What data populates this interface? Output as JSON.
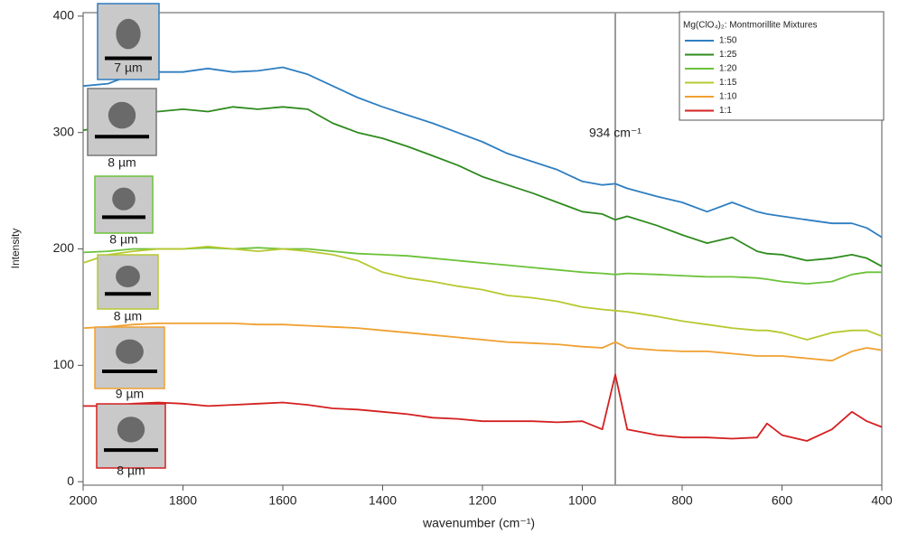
{
  "chart_data": {
    "type": "line",
    "xlabel": "wavenumber (cm⁻¹)",
    "ylabel": "Intensity",
    "x": [
      2000,
      1950,
      1900,
      1850,
      1800,
      1750,
      1700,
      1650,
      1600,
      1550,
      1500,
      1450,
      1400,
      1350,
      1300,
      1250,
      1200,
      1150,
      1100,
      1050,
      1000,
      960,
      934,
      910,
      850,
      800,
      750,
      700,
      650,
      630,
      600,
      550,
      500,
      460,
      430,
      400
    ],
    "xlim": [
      2000,
      400
    ],
    "xticks": [
      2000,
      1800,
      1600,
      1400,
      1200,
      1000,
      800,
      600,
      400
    ],
    "ylim": [
      -3,
      403
    ],
    "yticks": [
      0,
      100,
      200,
      300,
      400
    ],
    "grid": false,
    "legend_title": "Mg(ClO₄)₂: Montmorillite Mixtures",
    "legend_position": "upper right",
    "series": [
      {
        "name": "1:50",
        "color": "#2f7ec1",
        "values": [
          340,
          342,
          350,
          352,
          352,
          355,
          352,
          353,
          356,
          350,
          340,
          330,
          322,
          315,
          308,
          300,
          292,
          282,
          275,
          268,
          258,
          255,
          256,
          252,
          245,
          240,
          232,
          240,
          232,
          230,
          228,
          225,
          222,
          222,
          218,
          210
        ]
      },
      {
        "name": "1:25",
        "color": "#2e8b1e",
        "values": [
          302,
          305,
          318,
          318,
          320,
          318,
          322,
          320,
          322,
          320,
          308,
          300,
          295,
          288,
          280,
          272,
          262,
          255,
          248,
          240,
          232,
          230,
          225,
          228,
          220,
          212,
          205,
          210,
          198,
          196,
          195,
          190,
          192,
          195,
          192,
          185
        ]
      },
      {
        "name": "1:20",
        "color": "#6cc23a",
        "values": [
          197,
          198,
          200,
          200,
          200,
          201,
          200,
          201,
          200,
          200,
          198,
          196,
          195,
          194,
          192,
          190,
          188,
          186,
          184,
          182,
          180,
          179,
          178,
          179,
          178,
          177,
          176,
          176,
          175,
          174,
          172,
          170,
          172,
          178,
          180,
          180
        ]
      },
      {
        "name": "1:15",
        "color": "#b8c830",
        "values": [
          188,
          195,
          198,
          200,
          200,
          202,
          200,
          198,
          200,
          198,
          195,
          190,
          180,
          175,
          172,
          168,
          165,
          160,
          158,
          155,
          150,
          148,
          147,
          146,
          142,
          138,
          135,
          132,
          130,
          130,
          128,
          122,
          128,
          130,
          130,
          125
        ]
      },
      {
        "name": "1:10",
        "color": "#f0a030",
        "values": [
          132,
          133,
          135,
          136,
          136,
          136,
          136,
          135,
          135,
          134,
          133,
          132,
          130,
          128,
          126,
          124,
          122,
          120,
          119,
          118,
          116,
          115,
          120,
          115,
          113,
          112,
          112,
          110,
          108,
          108,
          108,
          106,
          104,
          112,
          115,
          113
        ]
      },
      {
        "name": "1:1",
        "color": "#d42020",
        "values": [
          65,
          65,
          67,
          68,
          67,
          65,
          66,
          67,
          68,
          66,
          63,
          62,
          60,
          58,
          55,
          54,
          52,
          52,
          52,
          51,
          52,
          45,
          92,
          45,
          40,
          38,
          38,
          37,
          38,
          50,
          40,
          35,
          45,
          60,
          52,
          47
        ]
      }
    ],
    "annotation": {
      "text": "934 cm⁻¹",
      "x": 934
    },
    "insets": [
      {
        "label": "7 µm",
        "color": "#2f7ec1"
      },
      {
        "label": "8 µm",
        "color": "#777777"
      },
      {
        "label": "8 µm",
        "color": "#6cc23a"
      },
      {
        "label": "8 µm",
        "color": "#b8c830"
      },
      {
        "label": "9 µm",
        "color": "#f0a030"
      },
      {
        "label": "8 µm",
        "color": "#d42020"
      }
    ]
  }
}
